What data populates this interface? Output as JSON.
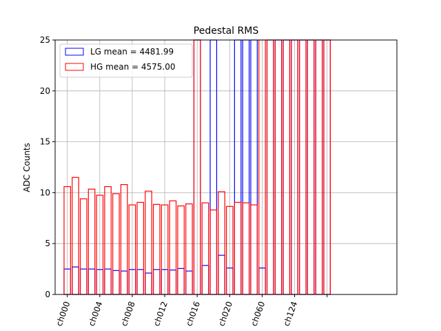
{
  "chart_data": {
    "type": "bar",
    "title": "Pedestal RMS",
    "xlabel": "",
    "ylabel": "ADC Counts",
    "ylim": [
      0,
      25
    ],
    "yticks": [
      0,
      5,
      10,
      15,
      20,
      25
    ],
    "xlim": [
      -1.5,
      40.6
    ],
    "xtick_labels": [
      {
        "label": "ch000",
        "x": 0
      },
      {
        "label": "ch004",
        "x": 4
      },
      {
        "label": "ch008",
        "x": 8
      },
      {
        "label": "ch012",
        "x": 12
      },
      {
        "label": "ch016",
        "x": 16
      },
      {
        "label": "ch020",
        "x": 20
      },
      {
        "label": "ch060",
        "x": 24
      },
      {
        "label": "ch124",
        "x": 28
      },
      {
        "label": "",
        "x": 32
      }
    ],
    "grid": true,
    "legend_position": "top-left",
    "bar_width": 0.8,
    "series": [
      {
        "name": "LG mean = 4481.99",
        "color": "#0000ff",
        "values": [
          2.5,
          2.7,
          2.5,
          2.5,
          2.45,
          2.5,
          2.35,
          2.3,
          2.45,
          2.45,
          2.1,
          2.45,
          2.45,
          2.4,
          2.55,
          2.3,
          25,
          2.85,
          25,
          3.85,
          2.6,
          25,
          25,
          25,
          2.6,
          25,
          25,
          25,
          25,
          25,
          25,
          25,
          25
        ]
      },
      {
        "name": "HG mean = 4575.00",
        "color": "#ff0000",
        "values": [
          10.6,
          11.5,
          9.4,
          10.35,
          9.75,
          10.6,
          9.9,
          10.8,
          8.8,
          9.05,
          10.15,
          8.85,
          8.8,
          9.2,
          8.7,
          8.9,
          25,
          9.0,
          8.3,
          10.1,
          8.65,
          9.05,
          9.0,
          8.8,
          25,
          25,
          25,
          25,
          25,
          25,
          25,
          25,
          25
        ]
      }
    ]
  }
}
